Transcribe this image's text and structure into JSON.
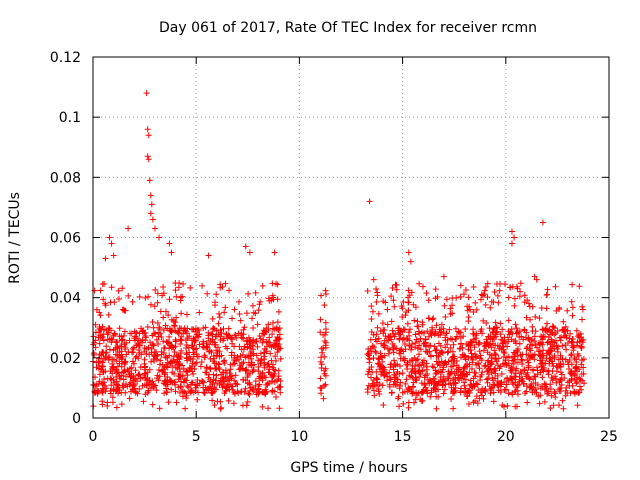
{
  "chart_data": {
    "type": "scatter",
    "title": "Day 061 of 2017, Rate Of TEC Index for receiver rcmn",
    "xlabel": "GPS time / hours",
    "ylabel": "ROTI / TECUs",
    "xlim": [
      0,
      25
    ],
    "ylim": [
      0,
      0.12
    ],
    "x_ticks": [
      0,
      5,
      10,
      15,
      20,
      25
    ],
    "y_ticks": [
      0,
      0.02,
      0.04,
      0.06,
      0.08,
      0.1,
      0.12
    ],
    "grid": true,
    "marker": "+",
    "colors": {
      "series": "#ff0000",
      "grid": "#a0a0a0",
      "axis": "#000000"
    },
    "series": [
      {
        "name": "ROTI",
        "observation_windows_hours": [
          [
            0,
            9.1
          ],
          [
            11.0,
            11.3
          ],
          [
            13.3,
            23.8
          ]
        ],
        "typical_band": [
          0.008,
          0.03
        ],
        "outliers": [
          {
            "x": 2.6,
            "y": 0.108
          },
          {
            "x": 2.65,
            "y": 0.096
          },
          {
            "x": 2.7,
            "y": 0.094
          },
          {
            "x": 2.65,
            "y": 0.087
          },
          {
            "x": 2.7,
            "y": 0.086
          },
          {
            "x": 2.75,
            "y": 0.079
          },
          {
            "x": 2.8,
            "y": 0.074
          },
          {
            "x": 2.85,
            "y": 0.071
          },
          {
            "x": 2.8,
            "y": 0.068
          },
          {
            "x": 2.9,
            "y": 0.066
          },
          {
            "x": 3.0,
            "y": 0.063
          },
          {
            "x": 3.2,
            "y": 0.06
          },
          {
            "x": 1.7,
            "y": 0.063
          },
          {
            "x": 0.8,
            "y": 0.06
          },
          {
            "x": 0.9,
            "y": 0.058
          },
          {
            "x": 1.0,
            "y": 0.054
          },
          {
            "x": 0.6,
            "y": 0.053
          },
          {
            "x": 3.7,
            "y": 0.058
          },
          {
            "x": 3.8,
            "y": 0.055
          },
          {
            "x": 5.6,
            "y": 0.054
          },
          {
            "x": 7.4,
            "y": 0.057
          },
          {
            "x": 7.6,
            "y": 0.055
          },
          {
            "x": 8.8,
            "y": 0.055
          },
          {
            "x": 13.4,
            "y": 0.072
          },
          {
            "x": 15.3,
            "y": 0.055
          },
          {
            "x": 15.4,
            "y": 0.052
          },
          {
            "x": 20.3,
            "y": 0.062
          },
          {
            "x": 20.4,
            "y": 0.06
          },
          {
            "x": 20.3,
            "y": 0.058
          },
          {
            "x": 21.8,
            "y": 0.065
          },
          {
            "x": 21.4,
            "y": 0.047
          },
          {
            "x": 21.5,
            "y": 0.046
          },
          {
            "x": 17.0,
            "y": 0.047
          },
          {
            "x": 22.0,
            "y": 0.041
          },
          {
            "x": 23.7,
            "y": 0.037
          },
          {
            "x": 13.6,
            "y": 0.046
          }
        ]
      }
    ]
  }
}
